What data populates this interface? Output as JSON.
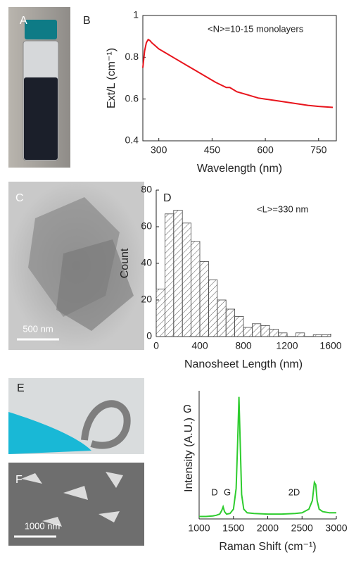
{
  "images": [
    {
      "label": "A"
    },
    {
      "label": "C",
      "scale_bar": "500 nm"
    },
    {
      "label": "E"
    },
    {
      "label": "F",
      "scale_bar": "1000 nm"
    }
  ],
  "chart_data": [
    {
      "type": "line",
      "panel": "B",
      "annotation": "<N>=10-15 monolayers",
      "xlabel": "Wavelength (nm)",
      "ylabel": "Ext/L (cm⁻¹)",
      "color": "#e8141c",
      "x": [
        255,
        260,
        265,
        270,
        275,
        280,
        290,
        300,
        320,
        350,
        380,
        400,
        430,
        460,
        490,
        500,
        520,
        550,
        580,
        600,
        640,
        680,
        720,
        750,
        790
      ],
      "values": [
        0.75,
        0.83,
        0.87,
        0.885,
        0.88,
        0.87,
        0.855,
        0.84,
        0.82,
        0.79,
        0.76,
        0.74,
        0.71,
        0.68,
        0.655,
        0.655,
        0.635,
        0.62,
        0.605,
        0.6,
        0.59,
        0.58,
        0.57,
        0.565,
        0.56
      ],
      "xlim": [
        255,
        800
      ],
      "xticks": [
        300,
        450,
        600,
        750
      ],
      "ylim": [
        0.4,
        1
      ],
      "yticks": [
        0.4,
        0.6,
        0.8,
        1
      ]
    },
    {
      "type": "histogram",
      "panel": "D",
      "annotation": "<L>=330 nm",
      "xlabel": "Nanosheet Length (nm)",
      "ylabel": "Count",
      "color": "#444444",
      "bins": [
        0,
        80,
        160,
        240,
        320,
        400,
        480,
        560,
        640,
        720,
        800,
        880,
        960,
        1040,
        1120,
        1200,
        1280,
        1360,
        1440,
        1520,
        1600
      ],
      "values": [
        26,
        67,
        69,
        62,
        52,
        41,
        31,
        20,
        15,
        11,
        5,
        7,
        6,
        4,
        2,
        0,
        2,
        0,
        1,
        1
      ],
      "xlim": [
        0,
        1600
      ],
      "xticks": [
        0,
        400,
        800,
        1200,
        1600
      ],
      "ylim": [
        0,
        80
      ],
      "yticks": [
        0,
        20,
        40,
        60,
        80
      ]
    },
    {
      "type": "line",
      "panel": "G",
      "annotations": [
        "D",
        "G",
        "2D"
      ],
      "xlabel": "Raman Shift (cm⁻¹)",
      "ylabel": "Intensity (A.U.)",
      "color": "#2ecc2e",
      "x": [
        1000,
        1100,
        1200,
        1250,
        1300,
        1330,
        1350,
        1370,
        1400,
        1450,
        1500,
        1540,
        1560,
        1580,
        1600,
        1620,
        1650,
        1700,
        1800,
        2000,
        2200,
        2400,
        2500,
        2600,
        2650,
        2680,
        2700,
        2720,
        2750,
        2800,
        2900,
        3000
      ],
      "values": [
        0.02,
        0.02,
        0.025,
        0.03,
        0.04,
        0.07,
        0.1,
        0.06,
        0.04,
        0.045,
        0.08,
        0.25,
        0.6,
        1.0,
        0.6,
        0.2,
        0.08,
        0.05,
        0.045,
        0.04,
        0.04,
        0.045,
        0.05,
        0.08,
        0.15,
        0.3,
        0.28,
        0.15,
        0.08,
        0.06,
        0.05,
        0.05
      ],
      "xlim": [
        1000,
        3000
      ],
      "xticks": [
        1000,
        1500,
        2000,
        2500,
        3000
      ],
      "ylim": [
        0,
        1.05
      ]
    }
  ]
}
